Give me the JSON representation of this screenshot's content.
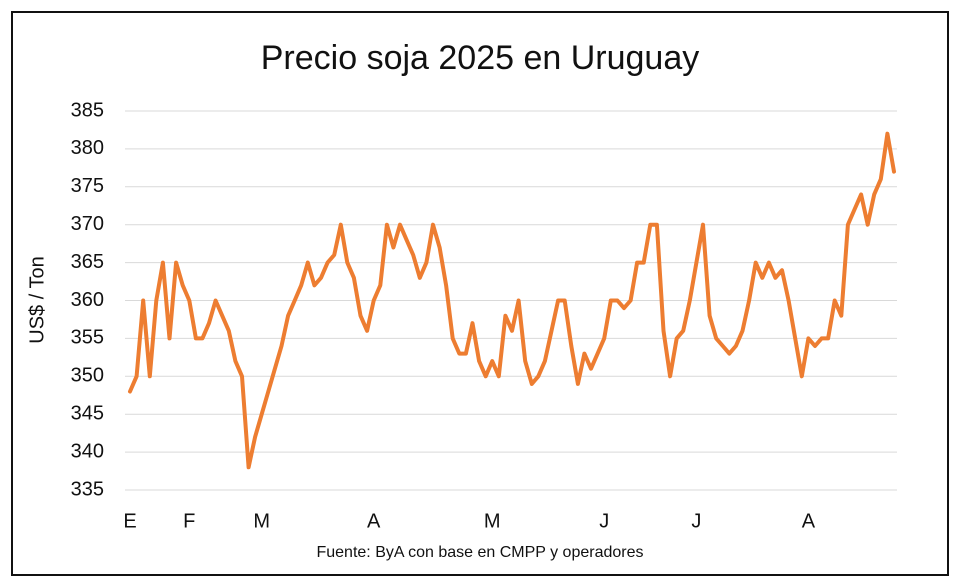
{
  "chart_data": {
    "type": "line",
    "title": "Precio soja 2025 en Uruguay",
    "y_label": "US$ / Ton",
    "source": "Fuente: ByA con base en CMPP y operadores",
    "categories": [
      "E",
      null,
      null,
      null,
      null,
      null,
      null,
      null,
      null,
      "F",
      null,
      null,
      null,
      null,
      null,
      null,
      null,
      null,
      null,
      null,
      "M",
      null,
      null,
      null,
      null,
      null,
      null,
      null,
      null,
      null,
      null,
      null,
      null,
      null,
      null,
      null,
      null,
      "A",
      null,
      null,
      null,
      null,
      null,
      null,
      null,
      null,
      null,
      null,
      null,
      null,
      null,
      null,
      null,
      null,
      null,
      "M",
      null,
      null,
      null,
      null,
      null,
      null,
      null,
      null,
      null,
      null,
      null,
      null,
      null,
      null,
      null,
      null,
      "J",
      null,
      null,
      null,
      null,
      null,
      null,
      null,
      null,
      null,
      null,
      null,
      null,
      null,
      "J",
      null,
      null,
      null,
      null,
      null,
      null,
      null,
      null,
      null,
      null,
      null,
      null,
      null,
      null,
      null,
      null,
      "A",
      null,
      null,
      null,
      null,
      null,
      null,
      null,
      null,
      null,
      null,
      null,
      null,
      null
    ],
    "series": [
      {
        "name": "Precio",
        "color": "#ed7d31",
        "values": [
          348,
          350,
          360,
          350,
          360,
          365,
          355,
          365,
          362,
          360,
          355,
          355,
          357,
          360,
          358,
          356,
          352,
          350,
          338,
          342,
          345,
          348,
          351,
          354,
          358,
          360,
          362,
          365,
          362,
          363,
          365,
          366,
          370,
          365,
          363,
          358,
          356,
          360,
          362,
          370,
          367,
          370,
          368,
          366,
          363,
          365,
          370,
          367,
          362,
          355,
          353,
          353,
          357,
          352,
          350,
          352,
          350,
          358,
          356,
          360,
          352,
          349,
          350,
          352,
          356,
          360,
          360,
          354,
          349,
          353,
          351,
          353,
          355,
          360,
          360,
          359,
          360,
          365,
          365,
          370,
          370,
          356,
          350,
          355,
          356,
          360,
          365,
          370,
          358,
          355,
          354,
          353,
          354,
          356,
          360,
          365,
          363,
          365,
          363,
          364,
          360,
          355,
          350,
          355,
          354,
          355,
          355,
          360,
          358,
          370,
          372,
          374,
          370,
          374,
          376,
          382,
          377
        ]
      }
    ],
    "ylim": [
      335,
      385
    ],
    "yticks": [
      335,
      340,
      345,
      350,
      355,
      360,
      365,
      370,
      375,
      380,
      385
    ],
    "grid": true
  }
}
